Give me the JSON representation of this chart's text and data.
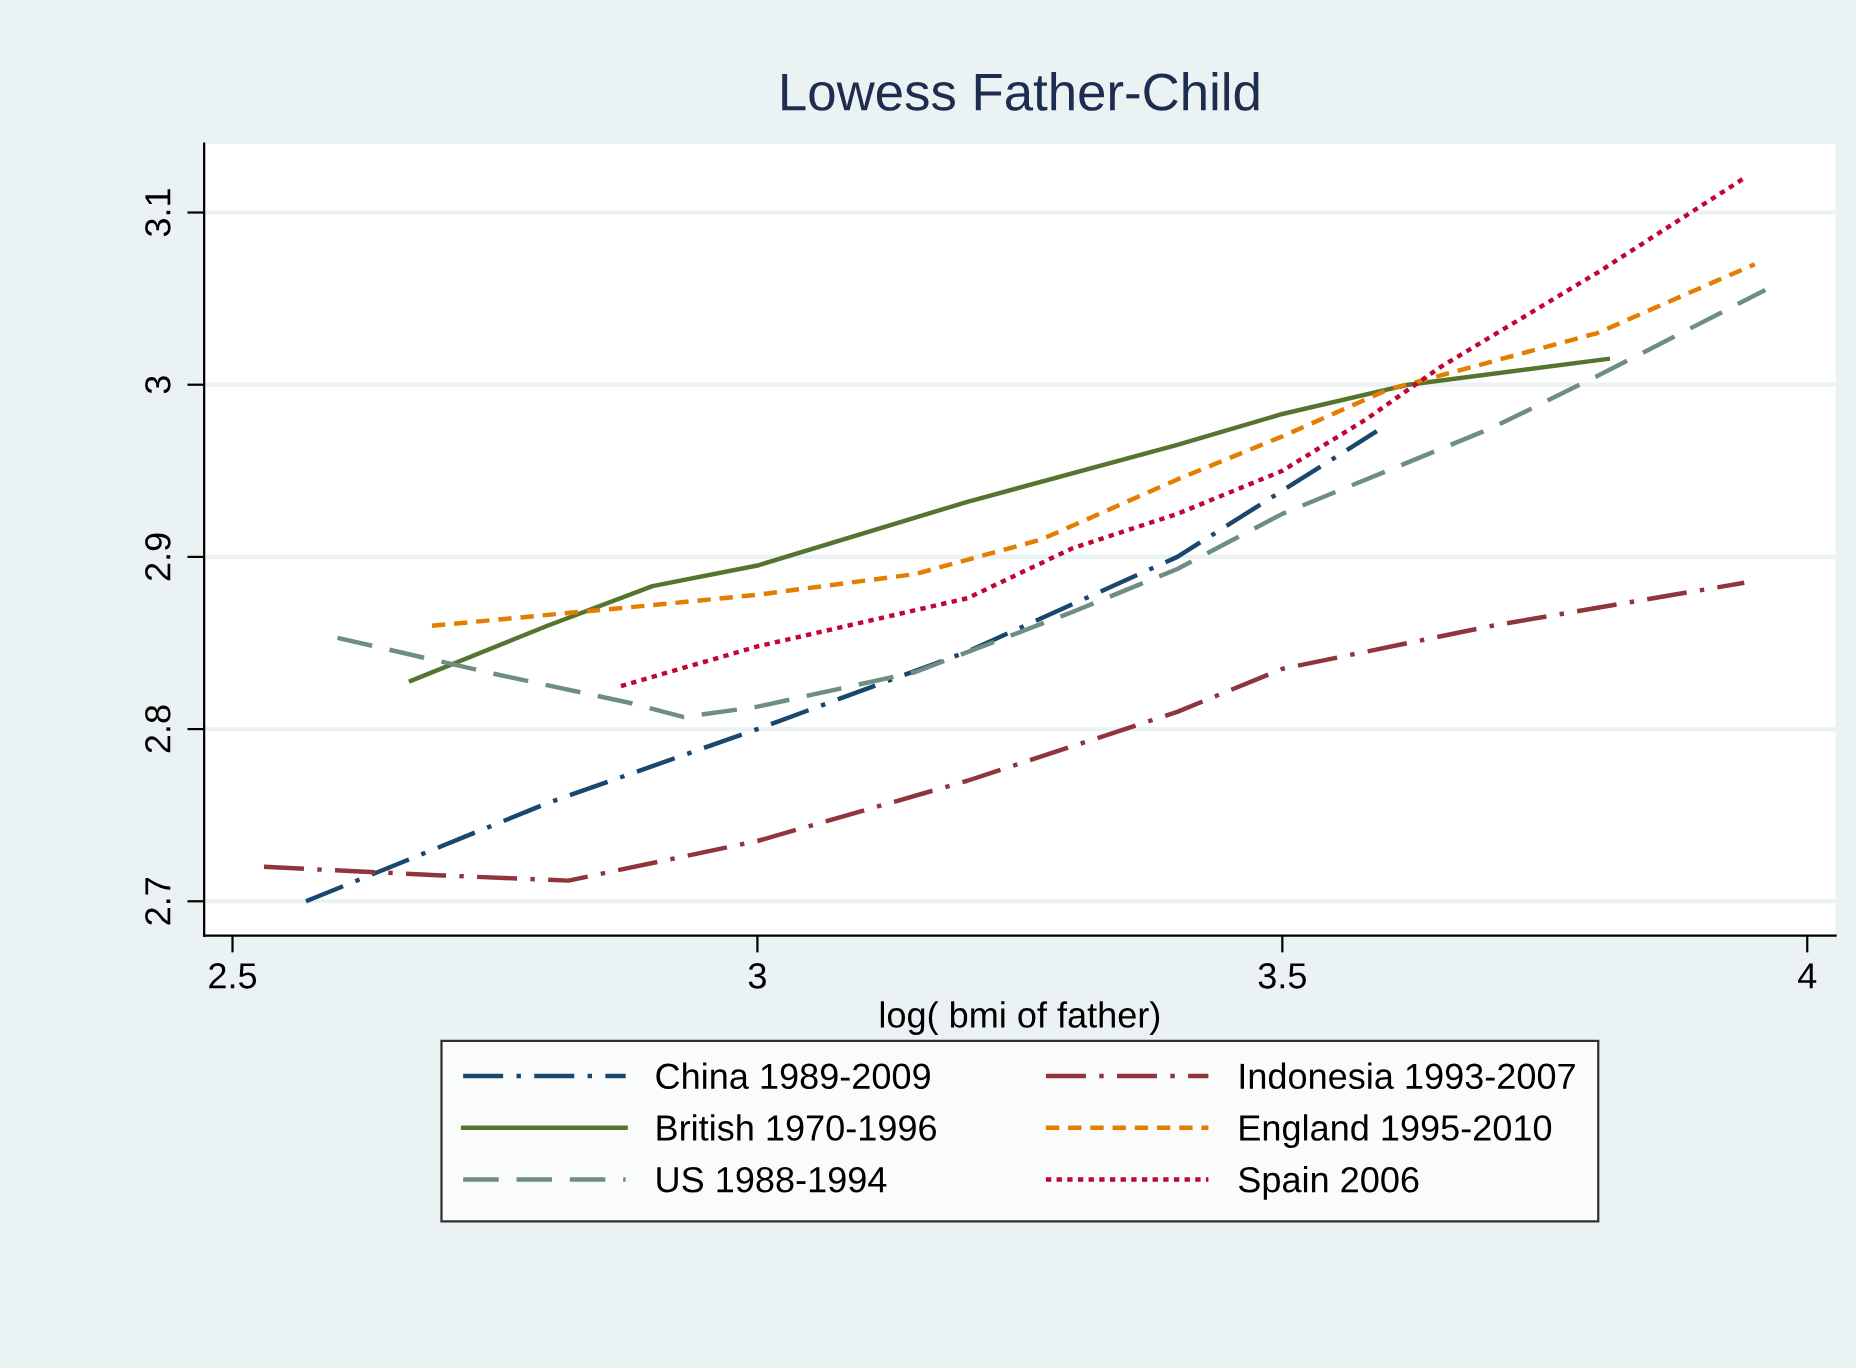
{
  "chart_data": {
    "type": "line",
    "title": "Lowess Father-Child",
    "xlabel": "log( bmi of father)",
    "xlim": [
      2.473,
      4.027
    ],
    "xticks": [
      2.5,
      3,
      3.5,
      4
    ],
    "ylim": [
      2.68,
      3.14
    ],
    "yticks": [
      2.7,
      2.8,
      2.9,
      3,
      3.1
    ],
    "grid": "y",
    "legend": "bottom",
    "marker": "none",
    "series": [
      {
        "name": "China 1989-2009",
        "color": "#1a476f",
        "line_style": "dashdot",
        "x": [
          2.57,
          2.8,
          3.0,
          3.2,
          3.4,
          3.59
        ],
        "values": [
          2.7,
          2.757,
          2.8,
          2.845,
          2.9,
          2.973
        ]
      },
      {
        "name": "British 1970-1996",
        "color": "#55752f",
        "line_style": "solid",
        "x": [
          2.67,
          2.8,
          2.9,
          3.0,
          3.2,
          3.4,
          3.5,
          3.62,
          3.81
        ],
        "values": [
          2.828,
          2.86,
          2.883,
          2.895,
          2.932,
          2.965,
          2.983,
          3.0,
          3.015
        ]
      },
      {
        "name": "US 1988-1994",
        "color": "#6e8e84",
        "line_style": "longdash",
        "x": [
          2.6,
          2.75,
          2.88,
          2.93,
          3.0,
          3.15,
          3.3,
          3.4,
          3.5,
          3.7,
          3.8,
          3.96
        ],
        "values": [
          2.853,
          2.832,
          2.815,
          2.807,
          2.813,
          2.833,
          2.868,
          2.893,
          2.925,
          2.975,
          3.005,
          3.055
        ]
      },
      {
        "name": "Indonesia 1993-2007",
        "color": "#90353b",
        "line_style": "dashdot",
        "x": [
          2.53,
          2.7,
          2.82,
          3.0,
          3.2,
          3.4,
          3.5,
          3.7,
          3.94
        ],
        "values": [
          2.72,
          2.715,
          2.712,
          2.735,
          2.77,
          2.81,
          2.835,
          2.86,
          2.885
        ]
      },
      {
        "name": "England 1995-2010",
        "color": "#e37e00",
        "line_style": "dashed",
        "x": [
          2.69,
          2.9,
          3.0,
          3.15,
          3.27,
          3.4,
          3.5,
          3.6,
          3.8,
          3.95
        ],
        "values": [
          2.86,
          2.872,
          2.878,
          2.89,
          2.91,
          2.945,
          2.97,
          2.997,
          3.03,
          3.07
        ]
      },
      {
        "name": "Spain 2006",
        "color": "#c10534",
        "line_style": "dotted",
        "x": [
          2.87,
          3.0,
          3.2,
          3.3,
          3.4,
          3.5,
          3.58,
          3.65,
          3.8,
          3.94
        ],
        "values": [
          2.825,
          2.848,
          2.876,
          2.905,
          2.925,
          2.95,
          2.98,
          3.01,
          3.065,
          3.12
        ]
      }
    ]
  }
}
